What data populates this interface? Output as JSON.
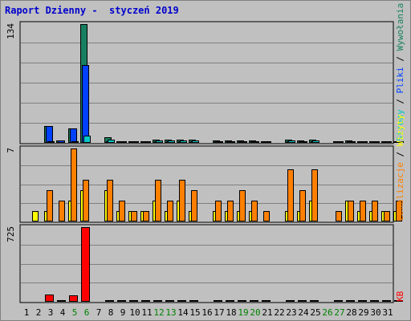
{
  "title": "Raport Dzienny -  styczeń 2019",
  "colors": {
    "hits": "#178060",
    "files": "#0040ff",
    "pages": "#00c8c8",
    "visits": "#ffff00",
    "sites": "#ff8000",
    "kbytes": "#ff0000",
    "weekend": "#008000",
    "weekday": "#000000"
  },
  "right_labels": {
    "hits": "Wywołania",
    "files": "Pliki",
    "pages": "Strony",
    "visits": "Wizyty",
    "sites": "Lokalizacje",
    "kbytes": "KB",
    "sep": " / "
  },
  "chart_data": [
    {
      "type": "bar",
      "panel": "top",
      "ymax_label": "134",
      "ymax": 134,
      "x": [
        1,
        2,
        3,
        4,
        5,
        6,
        7,
        8,
        9,
        10,
        11,
        12,
        13,
        14,
        15,
        16,
        17,
        18,
        19,
        20,
        21,
        22,
        23,
        24,
        25,
        26,
        27,
        28,
        29,
        30,
        31
      ],
      "series": [
        {
          "name": "Wywołania",
          "values": [
            0,
            19,
            3,
            16,
            134,
            0,
            6,
            2,
            2,
            2,
            4,
            4,
            4,
            4,
            0,
            3,
            3,
            3,
            3,
            2,
            0,
            4,
            3,
            4,
            0,
            2,
            3,
            2,
            2,
            2,
            2
          ]
        },
        {
          "name": "Pliki",
          "values": [
            0,
            19,
            3,
            16,
            88,
            0,
            1,
            1,
            1,
            1,
            1,
            1,
            1,
            1,
            0,
            1,
            1,
            1,
            1,
            1,
            0,
            1,
            1,
            1,
            0,
            1,
            1,
            1,
            1,
            1,
            1
          ]
        },
        {
          "name": "Strony",
          "values": [
            0,
            2,
            0,
            2,
            8,
            0,
            4,
            1,
            2,
            1,
            3,
            3,
            3,
            3,
            0,
            2,
            2,
            2,
            2,
            1,
            0,
            3,
            2,
            3,
            0,
            1,
            2,
            1,
            1,
            1,
            1
          ]
        }
      ]
    },
    {
      "type": "bar",
      "panel": "middle",
      "ymax_label": "7",
      "ymax": 7,
      "x": [
        1,
        2,
        3,
        4,
        5,
        6,
        7,
        8,
        9,
        10,
        11,
        12,
        13,
        14,
        15,
        16,
        17,
        18,
        19,
        20,
        21,
        22,
        23,
        24,
        25,
        26,
        27,
        28,
        29,
        30,
        31
      ],
      "series": [
        {
          "name": "Wizyty",
          "values": [
            1,
            1,
            0,
            2,
            3,
            0,
            3,
            1,
            1,
            1,
            2,
            1,
            2,
            1,
            0,
            1,
            1,
            1,
            1,
            0,
            0,
            1,
            1,
            2,
            0,
            0,
            2,
            1,
            1,
            1,
            1
          ]
        },
        {
          "name": "Lokalizacje",
          "values": [
            0,
            3,
            2,
            7,
            4,
            0,
            4,
            2,
            1,
            1,
            4,
            2,
            4,
            3,
            0,
            2,
            2,
            3,
            2,
            1,
            0,
            5,
            3,
            5,
            0,
            1,
            2,
            2,
            2,
            1,
            2
          ]
        }
      ]
    },
    {
      "type": "bar",
      "panel": "bottom",
      "ymax_label": "725",
      "ymax": 725,
      "x": [
        1,
        2,
        3,
        4,
        5,
        6,
        7,
        8,
        9,
        10,
        11,
        12,
        13,
        14,
        15,
        16,
        17,
        18,
        19,
        20,
        21,
        22,
        23,
        24,
        25,
        26,
        27,
        28,
        29,
        30,
        31
      ],
      "series": [
        {
          "name": "KB",
          "values": [
            0,
            70,
            10,
            60,
            725,
            0,
            10,
            10,
            10,
            10,
            10,
            10,
            10,
            10,
            0,
            10,
            10,
            10,
            10,
            10,
            0,
            10,
            10,
            10,
            0,
            10,
            10,
            10,
            10,
            10,
            10
          ]
        }
      ]
    }
  ],
  "days": [
    "1",
    "2",
    "3",
    "4",
    "5",
    "6",
    "7",
    "8",
    "9",
    "10",
    "11",
    "12",
    "13",
    "14",
    "15",
    "16",
    "17",
    "18",
    "19",
    "20",
    "21",
    "22",
    "23",
    "24",
    "25",
    "26",
    "27",
    "28",
    "29",
    "30",
    "31"
  ],
  "weekend_days": [
    5,
    6,
    12,
    13,
    19,
    20,
    26,
    27
  ]
}
